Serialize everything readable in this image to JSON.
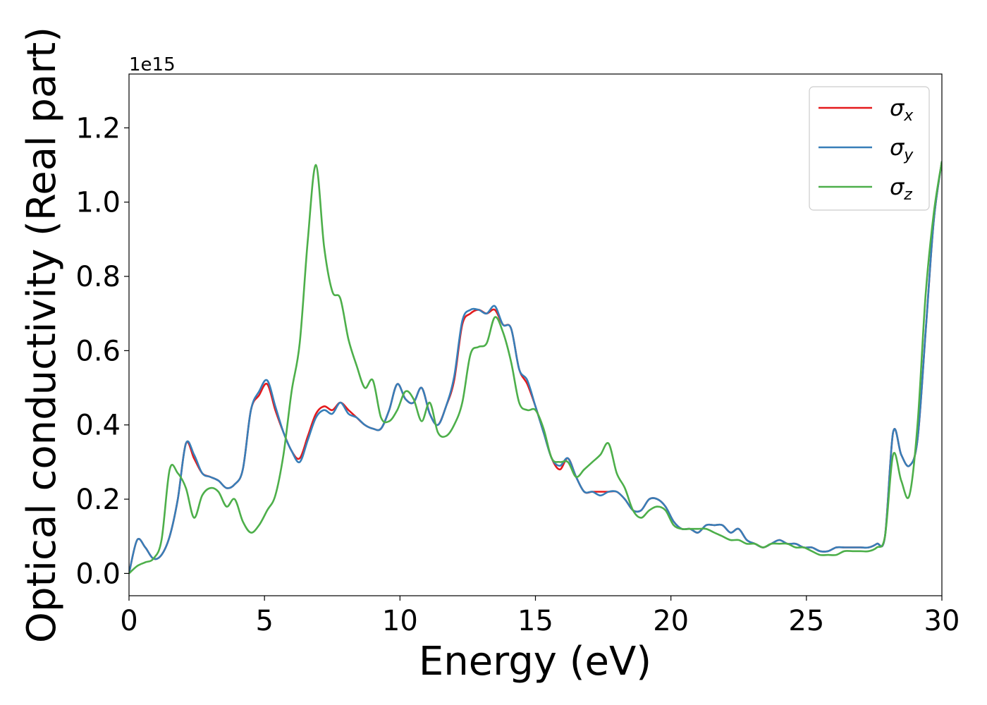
{
  "chart_data": {
    "type": "line",
    "title": "",
    "xlabel": "Energy (eV)",
    "ylabel": "Optical conductivity (Real part)",
    "y_offset_text": "1e15",
    "xlim": [
      0,
      30
    ],
    "ylim": [
      -0.06,
      1.345
    ],
    "xticks": [
      0,
      5,
      10,
      15,
      20,
      25,
      30
    ],
    "xtick_labels": [
      "0",
      "5",
      "10",
      "15",
      "20",
      "25",
      "30"
    ],
    "yticks": [
      0.0,
      0.2,
      0.4,
      0.6,
      0.8,
      1.0,
      1.2
    ],
    "ytick_labels": [
      "0.0",
      "0.2",
      "0.4",
      "0.6",
      "0.8",
      "1.0",
      "1.2"
    ],
    "grid": false,
    "legend": "top-right",
    "x": [
      0,
      0.3,
      0.6,
      0.9,
      1.2,
      1.5,
      1.8,
      2.1,
      2.4,
      2.7,
      3.0,
      3.3,
      3.6,
      3.9,
      4.2,
      4.5,
      4.8,
      5.1,
      5.4,
      5.7,
      6.0,
      6.3,
      6.6,
      6.9,
      7.2,
      7.5,
      7.8,
      8.1,
      8.4,
      8.7,
      9.0,
      9.3,
      9.6,
      9.9,
      10.2,
      10.5,
      10.8,
      11.1,
      11.4,
      11.7,
      12.0,
      12.3,
      12.6,
      12.9,
      13.2,
      13.5,
      13.8,
      14.1,
      14.4,
      14.7,
      15.0,
      15.3,
      15.6,
      15.9,
      16.2,
      16.5,
      16.8,
      17.1,
      17.4,
      17.7,
      18.0,
      18.3,
      18.6,
      18.9,
      19.2,
      19.5,
      19.8,
      20.1,
      20.4,
      20.7,
      21.0,
      21.3,
      21.6,
      21.9,
      22.2,
      22.5,
      22.8,
      23.1,
      23.4,
      23.7,
      24.0,
      24.3,
      24.6,
      24.9,
      25.2,
      25.5,
      25.8,
      26.1,
      26.4,
      26.7,
      27.0,
      27.3,
      27.6,
      27.9,
      28.2,
      28.5,
      28.8,
      29.1,
      29.4,
      29.7,
      30.0
    ],
    "series": [
      {
        "name": "σx",
        "color": "#e41a1c",
        "values": [
          0.0,
          0.09,
          0.07,
          0.04,
          0.05,
          0.1,
          0.2,
          0.35,
          0.31,
          0.27,
          0.26,
          0.25,
          0.23,
          0.24,
          0.28,
          0.44,
          0.48,
          0.51,
          0.44,
          0.38,
          0.33,
          0.31,
          0.37,
          0.43,
          0.45,
          0.44,
          0.46,
          0.44,
          0.42,
          0.4,
          0.39,
          0.39,
          0.44,
          0.51,
          0.47,
          0.46,
          0.5,
          0.43,
          0.4,
          0.45,
          0.52,
          0.67,
          0.7,
          0.71,
          0.7,
          0.71,
          0.67,
          0.66,
          0.55,
          0.51,
          0.45,
          0.38,
          0.31,
          0.28,
          0.31,
          0.26,
          0.22,
          0.22,
          0.22,
          0.22,
          0.22,
          0.2,
          0.17,
          0.17,
          0.2,
          0.2,
          0.18,
          0.14,
          0.12,
          0.12,
          0.11,
          0.13,
          0.13,
          0.13,
          0.11,
          0.12,
          0.09,
          0.08,
          0.07,
          0.08,
          0.09,
          0.08,
          0.08,
          0.07,
          0.07,
          0.06,
          0.06,
          0.07,
          0.07,
          0.07,
          0.07,
          0.07,
          0.08,
          0.1,
          0.38,
          0.32,
          0.29,
          0.36,
          0.65,
          0.95,
          1.11
        ]
      },
      {
        "name": "σy",
        "color": "#377eb8",
        "values": [
          0.0,
          0.09,
          0.07,
          0.04,
          0.05,
          0.1,
          0.2,
          0.35,
          0.32,
          0.27,
          0.26,
          0.25,
          0.23,
          0.24,
          0.28,
          0.44,
          0.49,
          0.52,
          0.45,
          0.38,
          0.33,
          0.3,
          0.36,
          0.42,
          0.44,
          0.43,
          0.46,
          0.43,
          0.42,
          0.4,
          0.39,
          0.39,
          0.44,
          0.51,
          0.47,
          0.46,
          0.5,
          0.43,
          0.4,
          0.45,
          0.53,
          0.68,
          0.71,
          0.71,
          0.7,
          0.72,
          0.67,
          0.66,
          0.55,
          0.52,
          0.45,
          0.38,
          0.31,
          0.29,
          0.31,
          0.26,
          0.22,
          0.22,
          0.21,
          0.22,
          0.22,
          0.2,
          0.17,
          0.17,
          0.2,
          0.2,
          0.18,
          0.14,
          0.12,
          0.12,
          0.11,
          0.13,
          0.13,
          0.13,
          0.11,
          0.12,
          0.09,
          0.08,
          0.07,
          0.08,
          0.09,
          0.08,
          0.08,
          0.07,
          0.07,
          0.06,
          0.06,
          0.07,
          0.07,
          0.07,
          0.07,
          0.07,
          0.08,
          0.1,
          0.38,
          0.32,
          0.29,
          0.36,
          0.65,
          0.95,
          1.11
        ]
      },
      {
        "name": "σz",
        "color": "#4daf4a",
        "values": [
          0.0,
          0.02,
          0.03,
          0.04,
          0.09,
          0.28,
          0.27,
          0.23,
          0.15,
          0.21,
          0.23,
          0.22,
          0.18,
          0.2,
          0.14,
          0.11,
          0.13,
          0.17,
          0.21,
          0.32,
          0.49,
          0.62,
          0.9,
          1.1,
          0.88,
          0.76,
          0.74,
          0.63,
          0.56,
          0.5,
          0.52,
          0.42,
          0.41,
          0.44,
          0.49,
          0.47,
          0.41,
          0.46,
          0.38,
          0.37,
          0.4,
          0.46,
          0.59,
          0.61,
          0.62,
          0.69,
          0.65,
          0.57,
          0.46,
          0.44,
          0.44,
          0.39,
          0.31,
          0.3,
          0.3,
          0.26,
          0.28,
          0.3,
          0.32,
          0.35,
          0.27,
          0.23,
          0.17,
          0.15,
          0.17,
          0.18,
          0.17,
          0.13,
          0.12,
          0.12,
          0.12,
          0.12,
          0.11,
          0.1,
          0.09,
          0.09,
          0.08,
          0.08,
          0.07,
          0.08,
          0.08,
          0.08,
          0.07,
          0.07,
          0.06,
          0.05,
          0.05,
          0.05,
          0.06,
          0.06,
          0.06,
          0.06,
          0.07,
          0.1,
          0.32,
          0.25,
          0.21,
          0.4,
          0.75,
          0.97,
          1.11
        ]
      }
    ]
  }
}
